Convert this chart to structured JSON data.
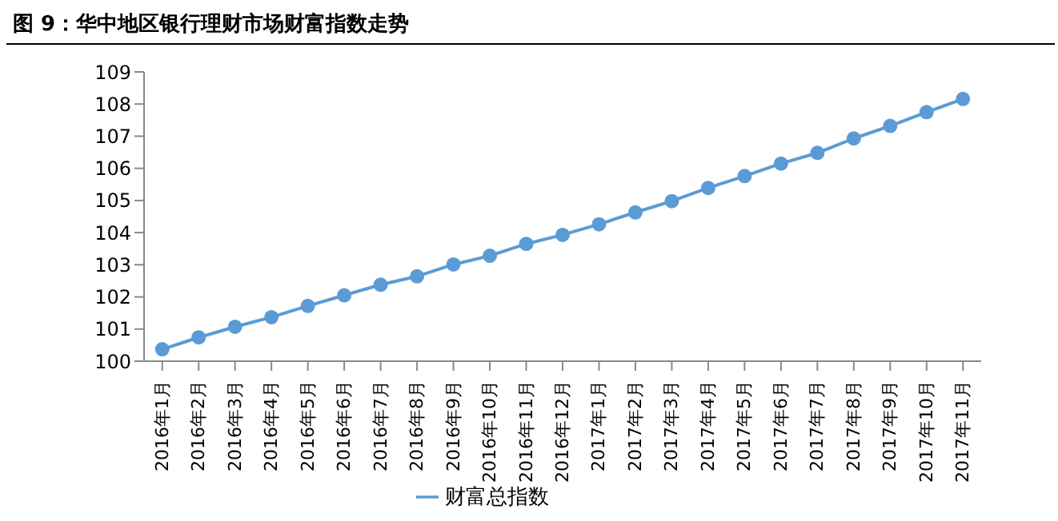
{
  "chart_data": {
    "type": "line",
    "title": "图 9：华中地区银行理财市场财富指数走势",
    "categories": [
      "2016年1月",
      "2016年2月",
      "2016年3月",
      "2016年4月",
      "2016年5月",
      "2016年6月",
      "2016年7月",
      "2016年8月",
      "2016年9月",
      "2016年10月",
      "2016年11月",
      "2016年12月",
      "2017年1月",
      "2017年2月",
      "2017年3月",
      "2017年4月",
      "2017年5月",
      "2017年6月",
      "2017年7月",
      "2017年8月",
      "2017年9月",
      "2017年10月",
      "2017年11月"
    ],
    "series": [
      {
        "name": "财富总指数",
        "color": "#5b9bd5",
        "values": [
          100.37,
          100.74,
          101.07,
          101.37,
          101.72,
          102.05,
          102.38,
          102.64,
          103.01,
          103.28,
          103.65,
          103.93,
          104.26,
          104.63,
          104.98,
          105.39,
          105.76,
          106.15,
          106.48,
          106.93,
          107.32,
          107.75,
          108.16
        ]
      }
    ],
    "ylim": [
      100,
      109
    ],
    "yticks": [
      100,
      101,
      102,
      103,
      104,
      105,
      106,
      107,
      108,
      109
    ],
    "grid": false,
    "legend": "bottom",
    "marker": "circle",
    "line_style": "solid"
  }
}
